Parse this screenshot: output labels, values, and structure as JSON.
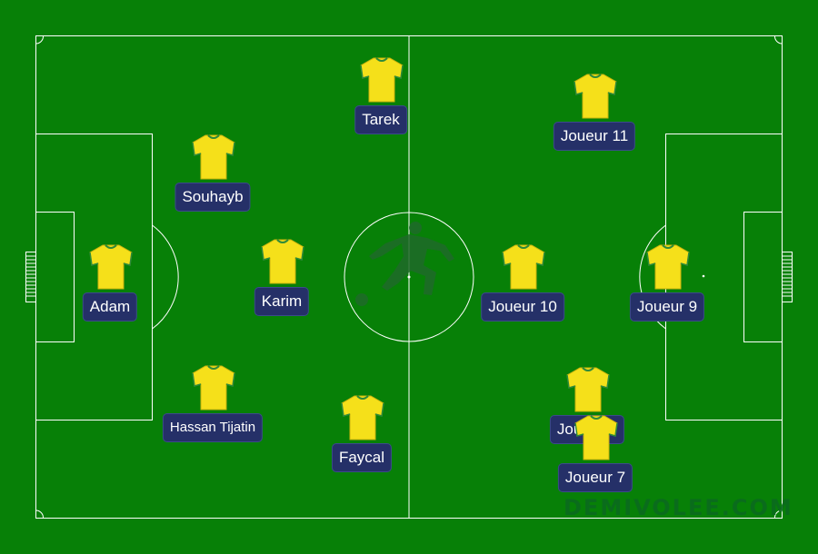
{
  "colors": {
    "grass": "#078007",
    "lines": "#ffffff",
    "label_bg": "#253068",
    "shirt": "#f5e01a",
    "shirt_trim": "#2f8a3a"
  },
  "icons": {
    "shirt": "jersey-icon",
    "silhouette": "player-kicking-icon"
  },
  "watermark": "DEMIVOLEE.COM",
  "players": [
    {
      "id": "adam",
      "name": "Adam"
    },
    {
      "id": "souhayb",
      "name": "Souhayb"
    },
    {
      "id": "hassan",
      "name": "Hassan Tijatin"
    },
    {
      "id": "karim",
      "name": "Karim"
    },
    {
      "id": "tarek",
      "name": "Tarek"
    },
    {
      "id": "faycal",
      "name": "Faycal"
    },
    {
      "id": "j11",
      "name": "Joueur 11"
    },
    {
      "id": "j10",
      "name": "Joueur 10"
    },
    {
      "id": "j9",
      "name": "Joueur 9"
    },
    {
      "id": "j6",
      "name": "Joueur 6"
    },
    {
      "id": "j7",
      "name": "Joueur 7"
    }
  ]
}
